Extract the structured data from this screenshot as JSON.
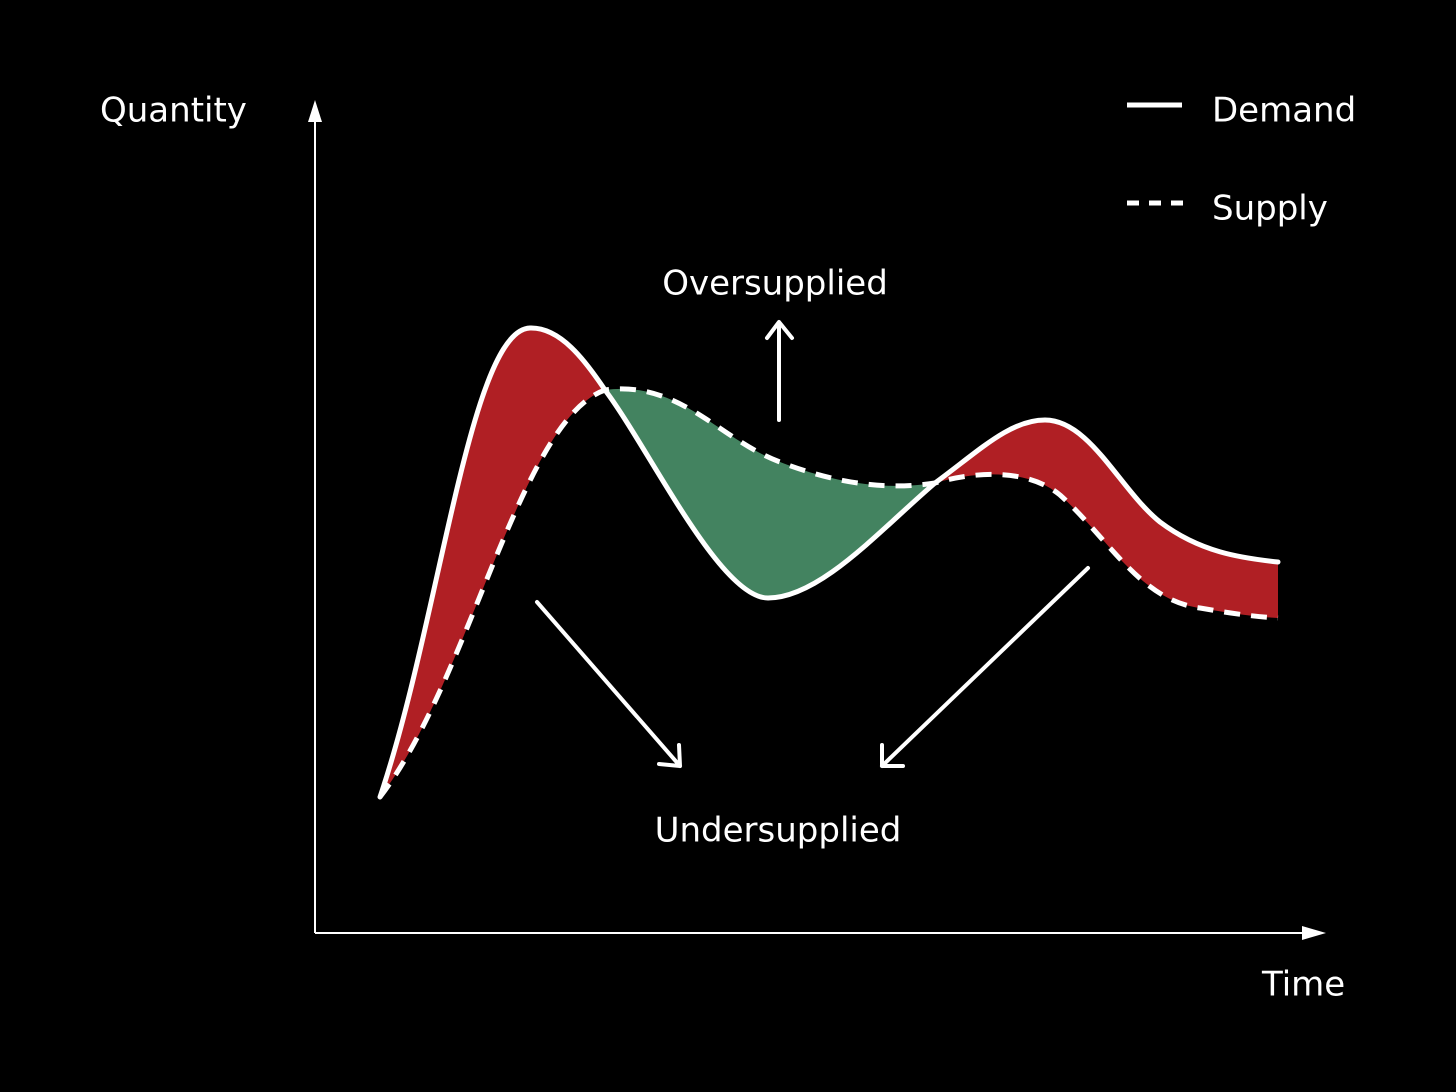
{
  "axes": {
    "y_label": "Quantity",
    "x_label": "Time"
  },
  "legend": [
    {
      "label": "Demand"
    },
    {
      "label": "Supply"
    }
  ],
  "annotations": {
    "over": "Oversupplied",
    "under": "Undersupplied"
  }
}
